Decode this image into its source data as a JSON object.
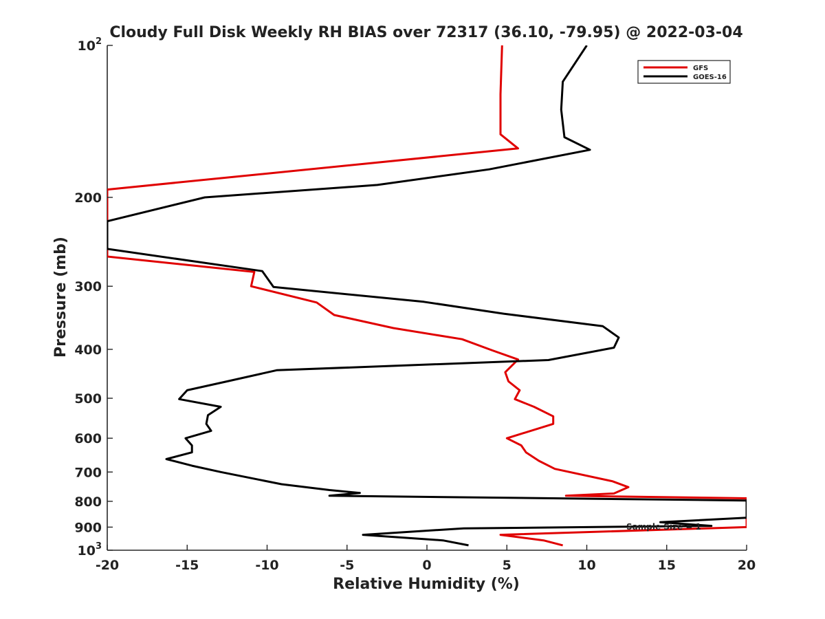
{
  "chart_data": {
    "type": "line",
    "title": "Cloudy Full Disk Weekly RH BIAS over 72317 (36.10, -79.95) @ 2022-03-04",
    "xlabel": "Relative Humidity (%)",
    "ylabel": "Pressure (mb)",
    "xlim": [
      -20,
      20
    ],
    "ylim": [
      100,
      1000
    ],
    "y_scale": "log",
    "y_reversed": true,
    "grid": false,
    "legend_position": "top-right",
    "x_ticks": [
      "-20",
      "-15",
      "-10",
      "-5",
      "0",
      "5",
      "10",
      "15",
      "20"
    ],
    "y_ticks": [
      {
        "base": "10",
        "exp": "2"
      },
      {
        "base": "200",
        "exp": ""
      },
      {
        "base": "300",
        "exp": ""
      },
      {
        "base": "400",
        "exp": ""
      },
      {
        "base": "500",
        "exp": ""
      },
      {
        "base": "600",
        "exp": ""
      },
      {
        "base": "700",
        "exp": ""
      },
      {
        "base": "800",
        "exp": ""
      },
      {
        "base": "900",
        "exp": ""
      },
      {
        "base": "10",
        "exp": "3"
      }
    ],
    "series": [
      {
        "name": "GFS",
        "color": "#e00000",
        "points": [
          [
            4.7,
            100
          ],
          [
            4.6,
            125
          ],
          [
            4.6,
            150
          ],
          [
            5.7,
            160
          ],
          [
            -20,
            193
          ],
          [
            -20,
            262
          ],
          [
            -10.8,
            281
          ],
          [
            -11.0,
            300
          ],
          [
            -6.9,
            323
          ],
          [
            -5.8,
            342
          ],
          [
            -2.1,
            363
          ],
          [
            2.2,
            382
          ],
          [
            4.1,
            402
          ],
          [
            5.7,
            419
          ],
          [
            4.9,
            444
          ],
          [
            5.1,
            463
          ],
          [
            5.8,
            482
          ],
          [
            5.5,
            502
          ],
          [
            6.7,
            520
          ],
          [
            7.9,
            543
          ],
          [
            7.9,
            562
          ],
          [
            5.0,
            600
          ],
          [
            5.9,
            620
          ],
          [
            6.2,
            640
          ],
          [
            7.0,
            665
          ],
          [
            8.0,
            690
          ],
          [
            11.6,
            730
          ],
          [
            12.6,
            750
          ],
          [
            11.7,
            772
          ],
          [
            8.7,
            780
          ],
          [
            20,
            789
          ],
          [
            20,
            900
          ],
          [
            4.6,
            932
          ],
          [
            7.3,
            956
          ],
          [
            8.5,
            978
          ]
        ]
      },
      {
        "name": "GOES-16",
        "color": "#000000",
        "points": [
          [
            10.0,
            100
          ],
          [
            8.5,
            118
          ],
          [
            8.4,
            134
          ],
          [
            8.6,
            152
          ],
          [
            10.2,
            161
          ],
          [
            3.9,
            176
          ],
          [
            -3.1,
            189
          ],
          [
            -13.9,
            200
          ],
          [
            -20,
            223
          ],
          [
            -20,
            253
          ],
          [
            -10.3,
            280
          ],
          [
            -9.6,
            301
          ],
          [
            -0.2,
            322
          ],
          [
            4.8,
            340
          ],
          [
            11.0,
            360
          ],
          [
            12.0,
            379
          ],
          [
            11.7,
            397
          ],
          [
            7.6,
            420
          ],
          [
            -9.4,
            440
          ],
          [
            -12.5,
            463
          ],
          [
            -15.0,
            482
          ],
          [
            -15.5,
            502
          ],
          [
            -12.9,
            520
          ],
          [
            -13.7,
            540
          ],
          [
            -13.8,
            562
          ],
          [
            -13.5,
            580
          ],
          [
            -15.1,
            600
          ],
          [
            -14.7,
            620
          ],
          [
            -14.7,
            640
          ],
          [
            -16.3,
            660
          ],
          [
            -14.7,
            680
          ],
          [
            -12.9,
            700
          ],
          [
            -9.1,
            740
          ],
          [
            -6.1,
            760
          ],
          [
            -4.2,
            770
          ],
          [
            -6.1,
            780
          ],
          [
            20,
            797
          ],
          [
            20,
            862
          ],
          [
            14.6,
            880
          ],
          [
            17.8,
            895
          ],
          [
            2.3,
            905
          ],
          [
            -4.0,
            932
          ],
          [
            1.0,
            956
          ],
          [
            2.6,
            978
          ]
        ]
      }
    ],
    "annotation": "Sample Size = 1"
  }
}
